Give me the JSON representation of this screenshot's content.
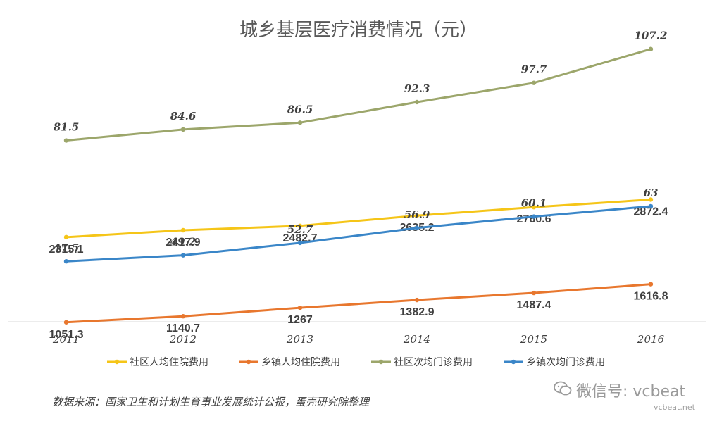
{
  "chart_data": {
    "type": "line",
    "title": "城乡基层医疗消费情况（元）",
    "categories": [
      "2011",
      "2012",
      "2013",
      "2014",
      "2015",
      "2016"
    ],
    "series": [
      {
        "name": "社区人均住院费用",
        "color": "#F5C518",
        "values": [
          2315.1,
          2417.9,
          2482.7,
          2635.2,
          2760.6,
          2872.4
        ],
        "labels": [
          "2315.1",
          "2417.9",
          "2482.7",
          "2635.2",
          "2760.6",
          "2872.4"
        ],
        "label_position": "below",
        "label_style": "bold"
      },
      {
        "name": "乡镇人均住院费用",
        "color": "#E8772E",
        "values": [
          1051.3,
          1140.7,
          1267,
          1382.9,
          1487.4,
          1616.8
        ],
        "labels": [
          "1051.3",
          "1140.7",
          "1267",
          "1382.9",
          "1487.4",
          "1616.8"
        ],
        "label_position": "below",
        "label_style": "bold"
      },
      {
        "name": "社区次均门诊费用",
        "color": "#9CA66B",
        "values": [
          81.5,
          84.6,
          86.5,
          92.3,
          97.7,
          107.2
        ],
        "labels": [
          "81.5",
          "84.6",
          "86.5",
          "92.3",
          "97.7",
          "107.2"
        ],
        "label_position": "above",
        "label_style": "italic"
      },
      {
        "name": "乡镇次均门诊费用",
        "color": "#3A86C8",
        "values": [
          47.5,
          49.2,
          52.7,
          56.9,
          60.1,
          63
        ],
        "labels": [
          "47.5",
          "49.2",
          "52.7",
          "56.9",
          "60.1",
          "63"
        ],
        "label_position": "above",
        "label_style": "italic"
      }
    ],
    "legend_position": "bottom",
    "grid": false,
    "axis_note": "dual-scale: inpatient series and outpatient series are plotted on separate, unlabeled scales"
  },
  "footer": {
    "source": "数据来源：国家卫生和计划生育事业发展统计公报，蛋壳研究院整理",
    "watermark_main": "微信号: vcbeat",
    "watermark_sub": "vcbeat.net"
  }
}
